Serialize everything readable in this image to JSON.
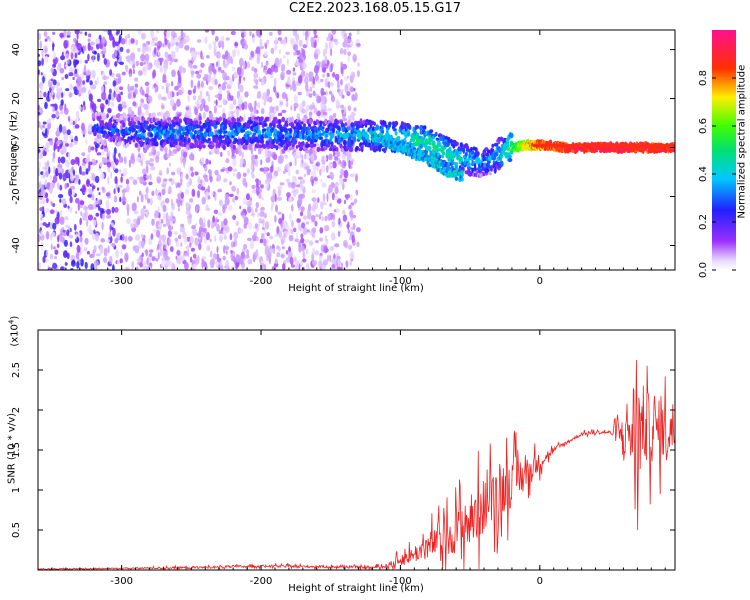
{
  "figure": {
    "title": "C2E2.2023.168.05.15.G17"
  },
  "chart_data": [
    {
      "type": "heatmap",
      "title": "C2E2.2023.168.05.15.G17",
      "xlabel": "Height of straight line (km)",
      "ylabel": "Frequency (Hz)",
      "xlim": [
        -360,
        97
      ],
      "ylim": [
        -50,
        48
      ],
      "x_ticks": [
        -300,
        -200,
        -100,
        0
      ],
      "y_ticks": [
        -40,
        -20,
        0,
        20,
        40
      ],
      "colorbar": {
        "label": "Normalized spectral amplitude",
        "range": [
          0.0,
          1.0
        ],
        "ticks": [
          0.0,
          0.2,
          0.4,
          0.6,
          0.8
        ],
        "colormap": "rainbow (white→purple→blue→cyan→green→yellow→red→magenta)"
      },
      "ridge": {
        "x": [
          -320,
          -280,
          -240,
          -200,
          -160,
          -130,
          -100,
          -80,
          -60,
          -40,
          -30,
          -20,
          -10,
          0,
          20,
          50,
          80,
          97
        ],
        "y": [
          8,
          6,
          6,
          6,
          5,
          5,
          4,
          2,
          -4,
          -6,
          -3,
          0,
          1,
          1,
          0,
          0,
          0,
          0
        ],
        "amplitude": [
          0.25,
          0.35,
          0.35,
          0.35,
          0.35,
          0.4,
          0.45,
          0.5,
          0.45,
          0.35,
          0.4,
          0.55,
          0.75,
          0.85,
          0.9,
          0.95,
          0.9,
          0.9
        ]
      },
      "secondary_branch": {
        "x": [
          -120,
          -100,
          -80,
          -65,
          -55
        ],
        "y": [
          5,
          0,
          -5,
          -10,
          -12
        ]
      },
      "noise_region_x": [
        -360,
        -130
      ]
    },
    {
      "type": "line",
      "xlabel": "Height of straight line (km)",
      "ylabel": "SNR (10 * v/v)",
      "y_multiplier": "(x10",
      "y_multiplier_exp": "4",
      "y_multiplier_close": ")",
      "xlim": [
        -360,
        97
      ],
      "ylim": [
        0,
        3.0
      ],
      "x_ticks": [
        -300,
        -200,
        -100,
        0
      ],
      "y_ticks": [
        0.5,
        1.0,
        1.5,
        2.0,
        2.5
      ],
      "series": [
        {
          "color": "#ee2222",
          "x": [
            -360,
            -300,
            -250,
            -200,
            -150,
            -120,
            -110,
            -100,
            -90,
            -80,
            -70,
            -60,
            -50,
            -40,
            -30,
            -20,
            -10,
            0,
            10,
            20,
            30,
            40,
            50,
            60,
            65,
            70,
            75,
            80,
            90,
            97
          ],
          "y": [
            0.01,
            0.02,
            0.03,
            0.05,
            0.04,
            0.03,
            0.05,
            0.12,
            0.2,
            0.3,
            0.4,
            0.5,
            0.6,
            0.8,
            1.0,
            1.1,
            1.2,
            1.35,
            1.5,
            1.6,
            1.7,
            1.72,
            1.72,
            1.7,
            1.75,
            1.75,
            1.8,
            1.75,
            1.75,
            1.8
          ],
          "spread": [
            0.01,
            0.01,
            0.02,
            0.02,
            0.02,
            0.02,
            0.04,
            0.1,
            0.15,
            0.25,
            0.3,
            0.4,
            0.5,
            0.5,
            0.5,
            0.45,
            0.3,
            0.15,
            0.05,
            0.03,
            0.03,
            0.03,
            0.03,
            0.3,
            0.9,
            1.0,
            0.7,
            0.6,
            0.5,
            0.5
          ]
        }
      ]
    }
  ]
}
